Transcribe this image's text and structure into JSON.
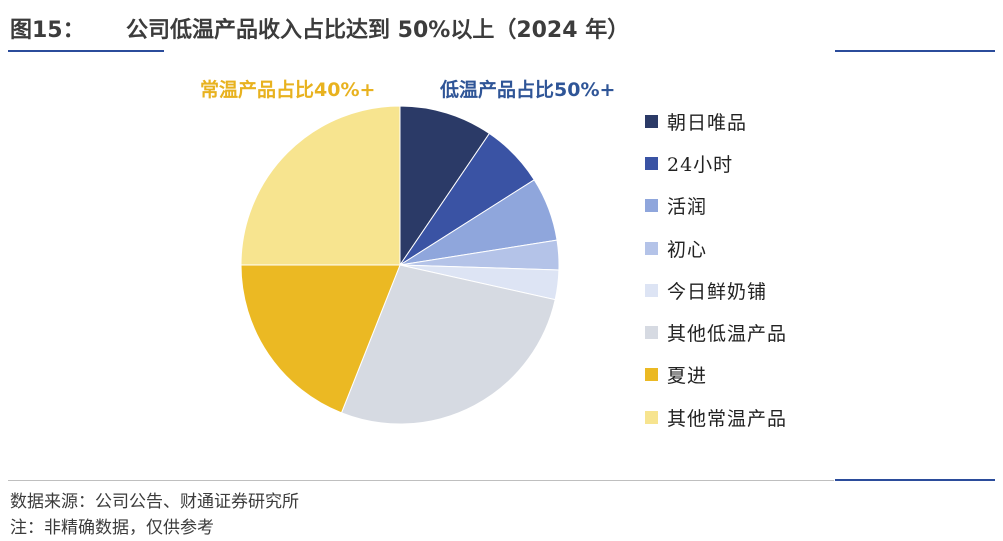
{
  "header": {
    "figure_number": "图15：",
    "title": "公司低温产品收入占比达到 50%以上（2024 年）"
  },
  "footer": {
    "source": "数据来源：公司公告、财通证券研究所",
    "note": "注：非精确数据，仅供参考"
  },
  "chart_data": {
    "type": "pie",
    "title": "公司低温产品收入占比达到 50%以上（2024 年）",
    "start_angle_deg": 0,
    "direction": "clockwise",
    "slices": [
      {
        "label": "朝日唯品",
        "value": 9.5,
        "color": "#2b3a67"
      },
      {
        "label": "24小时",
        "value": 6.5,
        "color": "#3a53a4"
      },
      {
        "label": "活润",
        "value": 6.5,
        "color": "#8fa6dc"
      },
      {
        "label": "初心",
        "value": 3.0,
        "color": "#b4c3e8"
      },
      {
        "label": "今日鲜奶铺",
        "value": 3.0,
        "color": "#dde4f4"
      },
      {
        "label": "其他低温产品",
        "value": 27.5,
        "color": "#d6dae2"
      },
      {
        "label": "夏进",
        "value": 19.0,
        "color": "#ebb923"
      },
      {
        "label": "其他常温产品",
        "value": 25.0,
        "color": "#f7e48f"
      }
    ],
    "annotations": [
      {
        "text": "常温产品占比40%+",
        "color": "#e8b21f"
      },
      {
        "text": "低温产品占比50%+",
        "color": "#2f5597"
      }
    ]
  }
}
